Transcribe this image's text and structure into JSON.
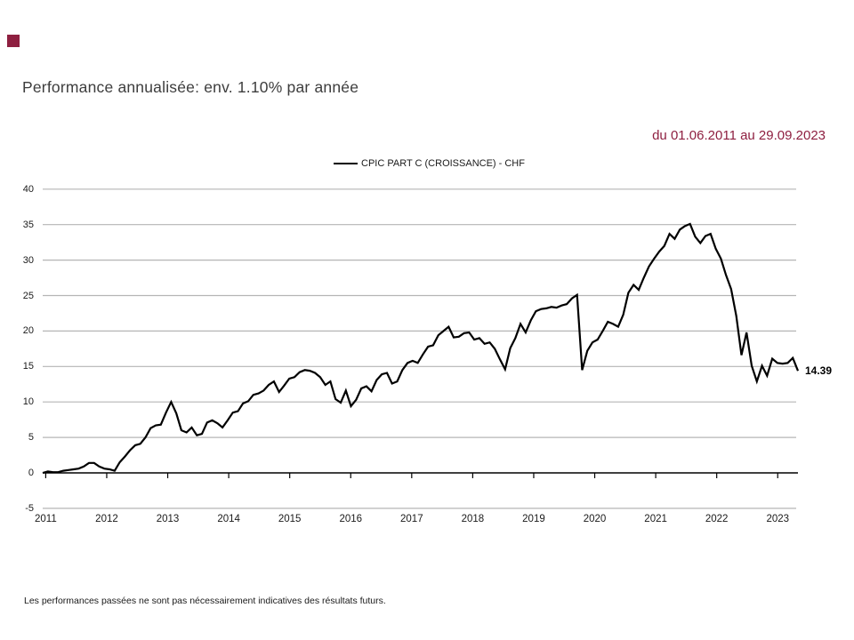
{
  "page": {
    "title": "Performance annualisée: env. 1.10% par année",
    "period": "du 01.06.2011 au 29.09.2023",
    "footnote": "Les performances passées ne sont pas nécessairement indicatives des résultats futurs.",
    "accent_color": "#8e1f40"
  },
  "chart_data": {
    "type": "line",
    "title": "Performance annualisée: env. 1.10% par année",
    "subtitle": "du 01.06.2011 au 29.09.2023",
    "legend": [
      "CPIC PART C (CROISSANCE) - CHF"
    ],
    "legend_position": "top-center",
    "grid": "horizontal",
    "line_color": "#000000",
    "grid_color": "#b5b5b5",
    "ylim": [
      -5,
      40
    ],
    "yticks": [
      40,
      35,
      30,
      25,
      20,
      15,
      10,
      5,
      0,
      -5
    ],
    "categories": [
      "2011",
      "2012",
      "2013",
      "2014",
      "2015",
      "2016",
      "2017",
      "2018",
      "2019",
      "2020",
      "2021",
      "2022",
      "2023"
    ],
    "end_label": "14.39",
    "series": [
      {
        "name": "CPIC PART C (CROISSANCE) - CHF",
        "sampling": "monthly",
        "values": [
          0.0,
          0.2,
          0.1,
          0.1,
          0.3,
          0.4,
          0.5,
          0.6,
          0.9,
          1.4,
          1.4,
          0.9,
          0.6,
          0.5,
          0.3,
          1.5,
          2.3,
          3.2,
          3.9,
          4.1,
          5.0,
          6.3,
          6.7,
          6.8,
          8.5,
          10.0,
          8.4,
          6.0,
          5.7,
          6.4,
          5.3,
          5.5,
          7.1,
          7.4,
          7.0,
          6.4,
          7.4,
          8.5,
          8.7,
          9.8,
          10.1,
          11.0,
          11.2,
          11.6,
          12.4,
          12.9,
          11.4,
          12.3,
          13.3,
          13.5,
          14.2,
          14.5,
          14.4,
          14.1,
          13.5,
          12.4,
          12.9,
          10.4,
          9.9,
          11.6,
          9.4,
          10.3,
          11.9,
          12.2,
          11.5,
          13.1,
          13.9,
          14.1,
          12.6,
          12.9,
          14.5,
          15.5,
          15.8,
          15.5,
          16.7,
          17.8,
          18.0,
          19.4,
          20.0,
          20.6,
          19.1,
          19.2,
          19.7,
          19.8,
          18.8,
          19.0,
          18.2,
          18.4,
          17.5,
          16.0,
          14.6,
          17.6,
          19.0,
          21.0,
          19.8,
          21.5,
          22.8,
          23.1,
          23.2,
          23.4,
          23.3,
          23.6,
          23.8,
          24.6,
          25.1,
          14.5,
          17.2,
          18.4,
          18.8,
          20.0,
          21.3,
          21.0,
          20.6,
          22.3,
          25.4,
          26.5,
          25.8,
          27.5,
          29.1,
          30.2,
          31.2,
          32.0,
          33.7,
          33.0,
          34.3,
          34.8,
          35.1,
          33.3,
          32.4,
          33.4,
          33.7,
          31.6,
          30.2,
          27.9,
          25.9,
          22.1,
          16.6,
          19.8,
          15.1,
          12.9,
          15.1,
          13.7,
          16.1,
          15.5,
          15.4,
          15.5,
          16.2,
          14.39
        ]
      }
    ]
  }
}
